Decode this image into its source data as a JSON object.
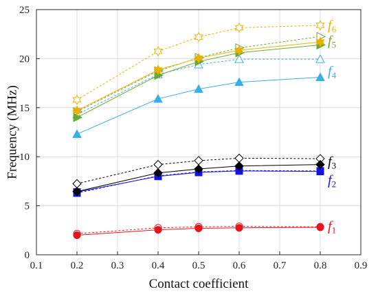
{
  "chart_data": {
    "type": "line",
    "xlabel": "Contact coefficient",
    "ylabel": "Frequency (MHz)",
    "xlim": [
      0.1,
      0.9
    ],
    "ylim": [
      0,
      25
    ],
    "xticks": [
      "0.1",
      "0.2",
      "0.3",
      "0.4",
      "0.5",
      "0.6",
      "0.7",
      "0.8",
      "0.9"
    ],
    "yticks": [
      "0",
      "5",
      "10",
      "15",
      "20",
      "25"
    ],
    "grid": true,
    "x": [
      0.2,
      0.4,
      0.5,
      0.6,
      0.8
    ],
    "series": [
      {
        "name": "f1",
        "label_base": "f",
        "label_sub": "1",
        "color": "#e8141c",
        "solid": [
          2.0,
          2.55,
          2.7,
          2.75,
          2.8
        ],
        "dashed": [
          2.15,
          2.75,
          2.85,
          2.9,
          2.85
        ],
        "marker_solid": "circle-filled",
        "marker_dashed": "circle-open"
      },
      {
        "name": "f2",
        "label_base": "f",
        "label_sub": "2",
        "color": "#1414e0",
        "solid": [
          6.4,
          8.0,
          8.4,
          8.55,
          8.5
        ],
        "dashed": [
          6.3,
          8.05,
          8.45,
          8.6,
          8.55
        ],
        "marker_solid": "square-filled",
        "marker_dashed": "square-filled"
      },
      {
        "name": "f3",
        "label_base": "f",
        "label_sub": "3",
        "color": "#000000",
        "solid": [
          6.45,
          8.35,
          8.75,
          9.05,
          9.2
        ],
        "dashed": [
          7.25,
          9.2,
          9.6,
          9.85,
          9.8
        ],
        "marker_solid": "diamond-filled",
        "marker_dashed": "diamond-open"
      },
      {
        "name": "f4",
        "label_base": "f",
        "label_sub": "4",
        "color": "#3aaee6",
        "solid": [
          12.3,
          15.9,
          16.9,
          17.6,
          18.1
        ],
        "dashed": [
          14.3,
          18.4,
          19.4,
          19.95,
          19.95
        ],
        "marker_solid": "triangle-up-filled",
        "marker_dashed": "triangle-up-open"
      },
      {
        "name": "f5",
        "label_base": "f",
        "label_sub": "5",
        "color": "#6aaa30",
        "solid": [
          14.0,
          18.3,
          19.7,
          20.6,
          21.4
        ],
        "dashed": [
          14.6,
          18.75,
          20.1,
          21.1,
          22.25
        ],
        "marker_solid": "triangle-right-filled",
        "marker_dashed": "triangle-right-open"
      },
      {
        "name": "f6",
        "label_base": "f",
        "label_sub": "6",
        "color": "#ecb100",
        "solid": [
          14.7,
          18.85,
          20.05,
          20.85,
          21.7
        ],
        "dashed": [
          15.8,
          20.75,
          22.2,
          23.15,
          23.4
        ],
        "marker_solid": "star-filled",
        "marker_dashed": "star-open"
      }
    ]
  }
}
